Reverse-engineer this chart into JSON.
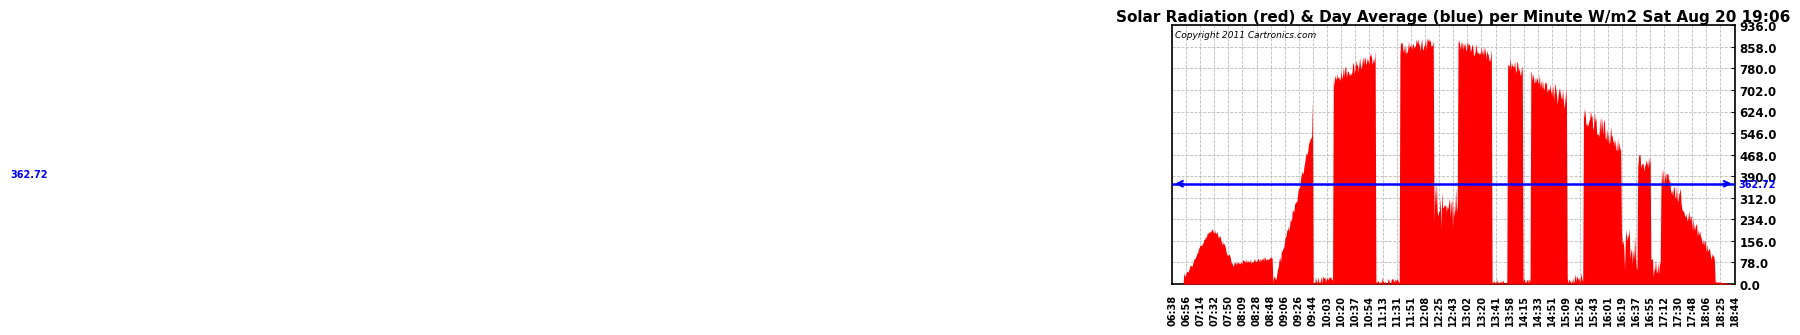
{
  "title": "Solar Radiation (red) & Day Average (blue) per Minute W/m2 Sat Aug 20 19:06",
  "copyright": "Copyright 2011 Cartronics.com",
  "avg_value": 362.72,
  "ymin": 0.0,
  "ymax": 936.0,
  "yticks": [
    0.0,
    78.0,
    156.0,
    234.0,
    312.0,
    390.0,
    468.0,
    546.0,
    624.0,
    702.0,
    780.0,
    858.0,
    936.0
  ],
  "bar_color": "red",
  "avg_color": "blue",
  "background_color": "#ffffff",
  "grid_color": "#aaaaaa",
  "xtick_labels": [
    "06:38",
    "06:56",
    "07:14",
    "07:32",
    "07:50",
    "08:09",
    "08:28",
    "08:48",
    "09:06",
    "09:26",
    "09:44",
    "10:03",
    "10:20",
    "10:37",
    "10:54",
    "11:13",
    "11:31",
    "11:51",
    "12:08",
    "12:25",
    "12:43",
    "13:02",
    "13:20",
    "13:41",
    "13:58",
    "14:15",
    "14:33",
    "14:51",
    "15:09",
    "15:26",
    "15:43",
    "16:01",
    "16:19",
    "16:37",
    "16:55",
    "17:12",
    "17:30",
    "17:48",
    "18:06",
    "18:25",
    "18:44"
  ],
  "title_fontsize": 11,
  "tick_fontsize": 7,
  "ylabel_right_fontsize": 8.5
}
